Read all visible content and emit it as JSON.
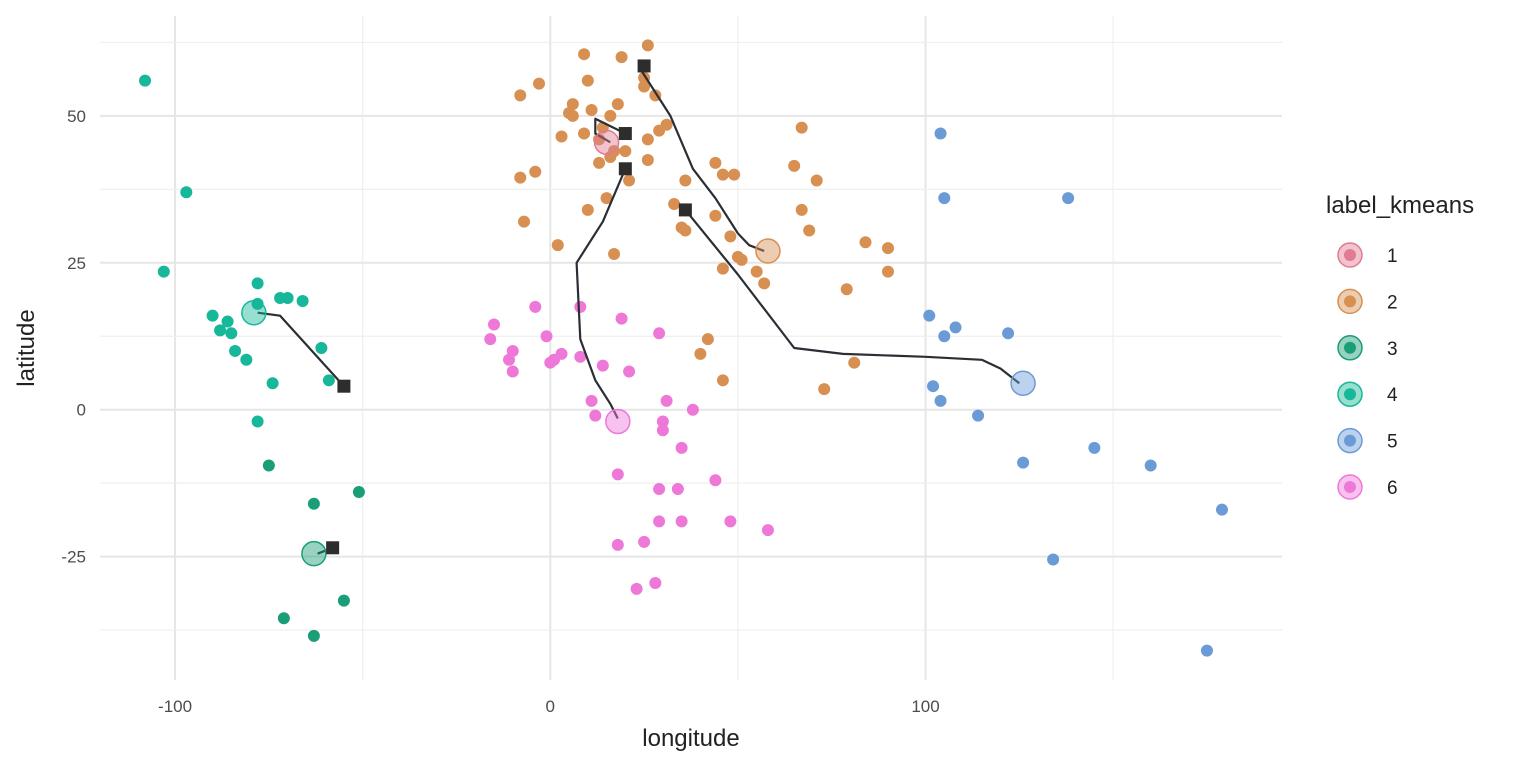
{
  "chart_data": {
    "type": "scatter",
    "xlabel": "longitude",
    "ylabel": "latitude",
    "xlim": [
      -120,
      195
    ],
    "ylim": [
      -46,
      67
    ],
    "x_ticks": [
      -100,
      0,
      100
    ],
    "x_tick_labels": [
      "-100",
      "0",
      "100"
    ],
    "y_ticks": [
      -25,
      0,
      25,
      50
    ],
    "y_tick_labels": [
      "-25",
      "0",
      "25",
      "50"
    ],
    "grid": true,
    "legend": {
      "title": "label_kmeans",
      "position": "right",
      "entries": [
        {
          "label": "1",
          "color": "#E07B91"
        },
        {
          "label": "2",
          "color": "#D89052"
        },
        {
          "label": "3",
          "color": "#1A9E77"
        },
        {
          "label": "4",
          "color": "#17B79A"
        },
        {
          "label": "5",
          "color": "#6B9BD6"
        },
        {
          "label": "6",
          "color": "#EE78D8"
        }
      ]
    },
    "series": [
      {
        "name": "2",
        "color": "#D89052",
        "points": [
          [
            9,
            60.5
          ],
          [
            19,
            60
          ],
          [
            26,
            62
          ],
          [
            10,
            56
          ],
          [
            25,
            56.5
          ],
          [
            -3,
            55.5
          ],
          [
            -8,
            53.5
          ],
          [
            25,
            55
          ],
          [
            28,
            53.5
          ],
          [
            6,
            52
          ],
          [
            5,
            50.5
          ],
          [
            18,
            52
          ],
          [
            6,
            50
          ],
          [
            11,
            51
          ],
          [
            16,
            50
          ],
          [
            14,
            48
          ],
          [
            31,
            48.5
          ],
          [
            29,
            47.5
          ],
          [
            9,
            47
          ],
          [
            13,
            46
          ],
          [
            26,
            46
          ],
          [
            3,
            46.5
          ],
          [
            20,
            44
          ],
          [
            17,
            44
          ],
          [
            16,
            43
          ],
          [
            26,
            42.5
          ],
          [
            13,
            42
          ],
          [
            44,
            42
          ],
          [
            46,
            40
          ],
          [
            49,
            40
          ],
          [
            -4,
            40.5
          ],
          [
            -8,
            39.5
          ],
          [
            21,
            39
          ],
          [
            36,
            39
          ],
          [
            65,
            41.5
          ],
          [
            71,
            39
          ],
          [
            15,
            36
          ],
          [
            33,
            35
          ],
          [
            44,
            33
          ],
          [
            10,
            34
          ],
          [
            67,
            48
          ],
          [
            67,
            34
          ],
          [
            -7,
            32
          ],
          [
            35,
            31
          ],
          [
            36,
            30.5
          ],
          [
            69,
            30.5
          ],
          [
            48,
            29.5
          ],
          [
            2,
            28
          ],
          [
            84,
            28.5
          ],
          [
            90,
            27.5
          ],
          [
            17,
            26.5
          ],
          [
            50,
            26
          ],
          [
            51,
            25.5
          ],
          [
            55,
            23.5
          ],
          [
            46,
            24
          ],
          [
            90,
            23.5
          ],
          [
            57,
            21.5
          ],
          [
            79,
            20.5
          ],
          [
            42,
            12
          ],
          [
            40,
            9.5
          ],
          [
            81,
            8
          ],
          [
            46,
            5
          ],
          [
            73,
            3.5
          ]
        ]
      },
      {
        "name": "6",
        "color": "#EE78D8",
        "points": [
          [
            -4,
            17.5
          ],
          [
            8,
            17.5
          ],
          [
            19,
            15.5
          ],
          [
            -15,
            14.5
          ],
          [
            29,
            13
          ],
          [
            -1,
            12.5
          ],
          [
            -16,
            12
          ],
          [
            -10,
            10
          ],
          [
            -11,
            8.5
          ],
          [
            8,
            9
          ],
          [
            3,
            9.5
          ],
          [
            1,
            8.5
          ],
          [
            0,
            8
          ],
          [
            14,
            7.5
          ],
          [
            21,
            6.5
          ],
          [
            -10,
            6.5
          ],
          [
            11,
            1.5
          ],
          [
            31,
            1.5
          ],
          [
            38,
            0
          ],
          [
            12,
            -1
          ],
          [
            30,
            -2
          ],
          [
            30,
            -3.5
          ],
          [
            35,
            -6.5
          ],
          [
            18,
            -11
          ],
          [
            44,
            -12
          ],
          [
            29,
            -13.5
          ],
          [
            34,
            -13.5
          ],
          [
            35,
            -19
          ],
          [
            29,
            -19
          ],
          [
            48,
            -19
          ],
          [
            58,
            -20.5
          ],
          [
            25,
            -22.5
          ],
          [
            18,
            -23
          ],
          [
            28,
            -29.5
          ],
          [
            23,
            -30.5
          ]
        ]
      },
      {
        "name": "4",
        "color": "#17B79A",
        "points": [
          [
            -108,
            56
          ],
          [
            -97,
            37
          ],
          [
            -103,
            23.5
          ],
          [
            -78,
            21.5
          ],
          [
            -72,
            19
          ],
          [
            -70,
            19
          ],
          [
            -66,
            18.5
          ],
          [
            -78,
            18
          ],
          [
            -90,
            16
          ],
          [
            -86,
            15
          ],
          [
            -88,
            13.5
          ],
          [
            -85,
            13
          ],
          [
            -84,
            10
          ],
          [
            -81,
            8.5
          ],
          [
            -61,
            10.5
          ],
          [
            -74,
            4.5
          ],
          [
            -59,
            5
          ],
          [
            -78,
            -2
          ]
        ]
      },
      {
        "name": "3",
        "color": "#1A9E77",
        "points": [
          [
            -75,
            -9.5
          ],
          [
            -51,
            -14
          ],
          [
            -63,
            -16
          ],
          [
            -55,
            -32.5
          ],
          [
            -71,
            -35.5
          ],
          [
            -63,
            -38.5
          ]
        ]
      },
      {
        "name": "5",
        "color": "#6B9BD6",
        "points": [
          [
            104,
            47
          ],
          [
            105,
            36
          ],
          [
            138,
            36
          ],
          [
            101,
            16
          ],
          [
            108,
            14
          ],
          [
            105,
            12.5
          ],
          [
            122,
            13
          ],
          [
            102,
            4
          ],
          [
            104,
            1.5
          ],
          [
            114,
            -1
          ],
          [
            126,
            -9
          ],
          [
            145,
            -6.5
          ],
          [
            160,
            -9.5
          ],
          [
            179,
            -17
          ],
          [
            134,
            -25.5
          ],
          [
            175,
            -41
          ]
        ]
      }
    ],
    "centroids": [
      {
        "label": "1",
        "color": "#E07B91",
        "x": 15,
        "y": 45.5
      },
      {
        "label": "2",
        "color": "#D89052",
        "x": 58,
        "y": 27
      },
      {
        "label": "3",
        "color": "#1A9E77",
        "x": -63,
        "y": -24.5
      },
      {
        "label": "4",
        "color": "#17B79A",
        "x": -79,
        "y": 16.5
      },
      {
        "label": "5",
        "color": "#6B9BD6",
        "x": 126,
        "y": 4.5
      },
      {
        "label": "6",
        "color": "#EE78D8",
        "x": 18,
        "y": -2
      }
    ],
    "start_markers": [
      {
        "x": 25,
        "y": 58.5
      },
      {
        "x": 20,
        "y": 47
      },
      {
        "x": 20,
        "y": 41
      },
      {
        "x": 36,
        "y": 34
      },
      {
        "x": -55,
        "y": 4
      },
      {
        "x": -58,
        "y": -23.5
      }
    ],
    "paths": [
      {
        "name": "path-cluster-2",
        "points": [
          [
            25,
            58.5
          ],
          [
            24,
            58
          ],
          [
            32,
            50
          ],
          [
            38,
            41
          ],
          [
            44,
            36
          ],
          [
            50,
            30
          ],
          [
            53,
            28
          ],
          [
            57,
            27
          ]
        ]
      },
      {
        "name": "path-cluster-1",
        "points": [
          [
            20,
            47
          ],
          [
            12,
            49.5
          ],
          [
            12,
            47
          ],
          [
            16,
            45.5
          ]
        ]
      },
      {
        "name": "path-cluster-6",
        "points": [
          [
            20,
            41
          ],
          [
            14,
            32
          ],
          [
            7,
            25
          ],
          [
            8,
            12
          ],
          [
            12,
            5
          ],
          [
            16,
            1
          ],
          [
            18,
            -1.5
          ]
        ]
      },
      {
        "name": "path-cluster-5",
        "points": [
          [
            36,
            34
          ],
          [
            50,
            23
          ],
          [
            65,
            10.5
          ],
          [
            78,
            9.5
          ],
          [
            100,
            9
          ],
          [
            115,
            8.5
          ],
          [
            120,
            7
          ],
          [
            125,
            4.5
          ]
        ]
      },
      {
        "name": "path-cluster-4",
        "points": [
          [
            -55,
            4
          ],
          [
            -72,
            16
          ],
          [
            -78,
            16.5
          ]
        ]
      },
      {
        "name": "path-cluster-3",
        "points": [
          [
            -58,
            -23.5
          ],
          [
            -62,
            -24.5
          ]
        ]
      }
    ]
  }
}
